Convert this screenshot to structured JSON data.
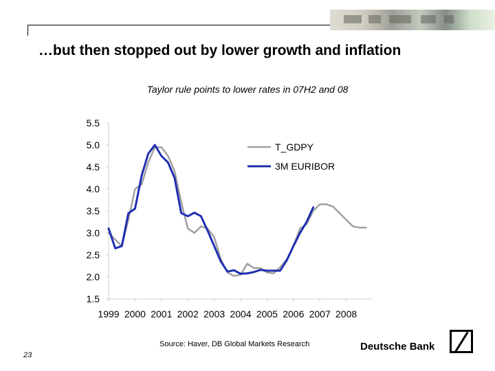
{
  "slide": {
    "title": "…but then stopped out by lower growth and inflation",
    "page_number": "23",
    "source": "Source: Haver, DB Global Markets Research",
    "brand": "Deutsche Bank"
  },
  "chart_data": {
    "type": "line",
    "title": "Taylor rule points to lower rates in 07H2 and 08",
    "xlabel": "",
    "ylabel": "",
    "x_ticks": [
      "1999",
      "2000",
      "2001",
      "2002",
      "2003",
      "2004",
      "2005",
      "2006",
      "2007",
      "2008"
    ],
    "xlim": [
      1999,
      2009
    ],
    "ylim": [
      1.5,
      5.5
    ],
    "y_ticks": [
      "1.5",
      "2.0",
      "2.5",
      "3.0",
      "3.5",
      "4.0",
      "4.5",
      "5.0",
      "5.5"
    ],
    "grid": false,
    "legend_position": "top-right",
    "series": [
      {
        "name": "T_GDPY",
        "color": "#a0a0a0",
        "x": [
          1999.0,
          1999.25,
          1999.5,
          1999.75,
          2000.0,
          2000.25,
          2000.5,
          2000.75,
          2001.0,
          2001.25,
          2001.5,
          2001.75,
          2002.0,
          2002.25,
          2002.5,
          2002.75,
          2003.0,
          2003.25,
          2003.5,
          2003.75,
          2004.0,
          2004.25,
          2004.5,
          2004.75,
          2005.0,
          2005.25,
          2005.5,
          2005.75,
          2006.0,
          2006.25,
          2006.5,
          2006.75,
          2007.0,
          2007.25,
          2007.5,
          2007.75,
          2008.0,
          2008.25,
          2008.5,
          2008.75
        ],
        "y": [
          3.0,
          2.85,
          2.7,
          3.3,
          4.0,
          4.1,
          4.6,
          4.95,
          4.95,
          4.75,
          4.4,
          3.7,
          3.1,
          3.0,
          3.15,
          3.1,
          2.9,
          2.4,
          2.1,
          2.02,
          2.05,
          2.3,
          2.2,
          2.2,
          2.1,
          2.08,
          2.22,
          2.4,
          2.7,
          3.1,
          3.2,
          3.5,
          3.65,
          3.65,
          3.6,
          3.45,
          3.3,
          3.15,
          3.12,
          3.12
        ]
      },
      {
        "name": "3M EURIBOR",
        "color": "#1f2fb0",
        "x": [
          1999.0,
          1999.25,
          1999.5,
          1999.75,
          2000.0,
          2000.25,
          2000.5,
          2000.75,
          2001.0,
          2001.25,
          2001.5,
          2001.75,
          2002.0,
          2002.25,
          2002.5,
          2002.75,
          2003.0,
          2003.25,
          2003.5,
          2003.75,
          2004.0,
          2004.25,
          2004.5,
          2004.75,
          2005.0,
          2005.25,
          2005.5,
          2005.75,
          2006.0,
          2006.25,
          2006.5,
          2006.75
        ],
        "y": [
          3.1,
          2.65,
          2.7,
          3.45,
          3.55,
          4.3,
          4.8,
          5.0,
          4.75,
          4.6,
          4.25,
          3.45,
          3.38,
          3.46,
          3.38,
          3.05,
          2.7,
          2.35,
          2.12,
          2.15,
          2.07,
          2.08,
          2.11,
          2.16,
          2.14,
          2.14,
          2.14,
          2.38,
          2.7,
          3.0,
          3.25,
          3.58
        ]
      }
    ]
  }
}
